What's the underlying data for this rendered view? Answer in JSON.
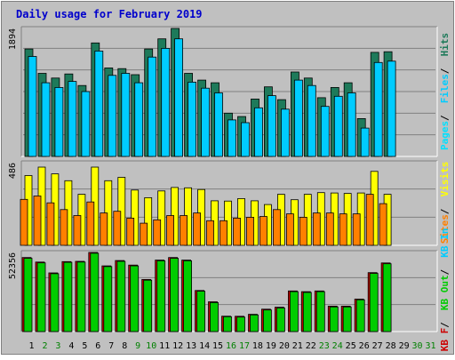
{
  "title": "Daily usage for February 2019",
  "colors": {
    "background": "#c0c0c0",
    "frame_dark": "#808080",
    "grid": "#808080",
    "title": "#0000cc",
    "hits": "#1e7a5a",
    "files": "#00ccff",
    "pages": "#00e0ff",
    "visits": "#ffff00",
    "sites": "#ff8000",
    "kb_in": "#00cc00",
    "kb_out": "#cc0000",
    "weekday_label": "#000000",
    "weekend_label": "#008000"
  },
  "chart_data": [
    {
      "type": "bar",
      "panel": "hits-files-pages",
      "title": "Daily usage for February 2019",
      "ylabel_max": "1894",
      "ylim": [
        0,
        1894
      ],
      "legend": [
        "Pages",
        "Files",
        "Hits"
      ],
      "categories": [
        "1",
        "2",
        "3",
        "4",
        "5",
        "6",
        "7",
        "8",
        "9",
        "10",
        "11",
        "12",
        "13",
        "14",
        "15",
        "16",
        "17",
        "18",
        "19",
        "20",
        "21",
        "22",
        "23",
        "24",
        "25",
        "26",
        "27",
        "28",
        "29",
        "30",
        "31"
      ],
      "series": [
        {
          "name": "Hits",
          "values": [
            1590,
            1230,
            1160,
            1220,
            1050,
            1680,
            1310,
            1300,
            1210,
            1590,
            1740,
            1894,
            1230,
            1130,
            1090,
            640,
            590,
            850,
            1030,
            840,
            1250,
            1160,
            870,
            1020,
            1090,
            560,
            1540,
            1550,
            null,
            null,
            null
          ]
        },
        {
          "name": "Files",
          "values": [
            1480,
            1090,
            1020,
            1110,
            960,
            1560,
            1200,
            1230,
            1090,
            1470,
            1600,
            1740,
            1100,
            1010,
            940,
            540,
            500,
            720,
            900,
            700,
            1130,
            1050,
            740,
            890,
            940,
            420,
            1390,
            1410,
            null,
            null,
            null
          ]
        }
      ]
    },
    {
      "type": "bar",
      "panel": "visits-sites",
      "ylabel_max": "486",
      "ylim": [
        0,
        486
      ],
      "legend": [
        "Sites",
        "Visits"
      ],
      "categories": [
        "1",
        "2",
        "3",
        "4",
        "5",
        "6",
        "7",
        "8",
        "9",
        "10",
        "11",
        "12",
        "13",
        "14",
        "15",
        "16",
        "17",
        "18",
        "19",
        "20",
        "21",
        "22",
        "23",
        "24",
        "25",
        "26",
        "27",
        "28",
        "29",
        "30",
        "31"
      ],
      "series": [
        {
          "name": "Visits",
          "values": [
            410,
            460,
            420,
            380,
            300,
            460,
            380,
            400,
            325,
            280,
            320,
            340,
            338,
            328,
            262,
            260,
            275,
            262,
            240,
            300,
            268,
            300,
            310,
            308,
            305,
            308,
            435,
            300,
            null,
            null,
            null
          ]
        },
        {
          "name": "Sites",
          "values": [
            270,
            290,
            250,
            210,
            175,
            255,
            190,
            200,
            160,
            130,
            150,
            175,
            175,
            190,
            145,
            145,
            160,
            165,
            170,
            210,
            185,
            165,
            190,
            190,
            185,
            185,
            300,
            245,
            null,
            null,
            null
          ]
        }
      ]
    },
    {
      "type": "bar",
      "panel": "kbytes",
      "ylabel_max": "52356",
      "ylim": [
        0,
        52356
      ],
      "legend": [
        "KB F",
        "KB Out",
        "KB In"
      ],
      "categories": [
        "1",
        "2",
        "3",
        "4",
        "5",
        "6",
        "7",
        "8",
        "9",
        "10",
        "11",
        "12",
        "13",
        "14",
        "15",
        "16",
        "17",
        "18",
        "19",
        "20",
        "21",
        "22",
        "23",
        "24",
        "25",
        "26",
        "27",
        "28",
        "29",
        "30",
        "31"
      ],
      "series": [
        {
          "name": "KB Out",
          "values": [
            49000,
            46000,
            38800,
            46300,
            46500,
            52356,
            43500,
            47000,
            44000,
            34500,
            47300,
            49000,
            47300,
            27200,
            19700,
            10200,
            10100,
            11400,
            14800,
            16100,
            26900,
            26400,
            26900,
            16800,
            16800,
            21500,
            39000,
            45400,
            null,
            null,
            null
          ]
        },
        {
          "name": "KB In",
          "values": [
            48500,
            45500,
            38300,
            45800,
            46000,
            51800,
            43000,
            46500,
            43500,
            34000,
            46800,
            48500,
            46800,
            26700,
            19200,
            9800,
            9600,
            11000,
            14300,
            15600,
            26400,
            25900,
            26400,
            16300,
            16300,
            21000,
            38500,
            44900,
            null,
            null,
            null
          ]
        }
      ]
    }
  ],
  "days": [
    {
      "label": "1",
      "weekend": false
    },
    {
      "label": "2",
      "weekend": true
    },
    {
      "label": "3",
      "weekend": true
    },
    {
      "label": "4",
      "weekend": false
    },
    {
      "label": "5",
      "weekend": false
    },
    {
      "label": "6",
      "weekend": false
    },
    {
      "label": "7",
      "weekend": false
    },
    {
      "label": "8",
      "weekend": false
    },
    {
      "label": "9",
      "weekend": true
    },
    {
      "label": "10",
      "weekend": true
    },
    {
      "label": "11",
      "weekend": false
    },
    {
      "label": "12",
      "weekend": false
    },
    {
      "label": "13",
      "weekend": false
    },
    {
      "label": "14",
      "weekend": false
    },
    {
      "label": "15",
      "weekend": false
    },
    {
      "label": "16",
      "weekend": true
    },
    {
      "label": "17",
      "weekend": true
    },
    {
      "label": "18",
      "weekend": false
    },
    {
      "label": "19",
      "weekend": false
    },
    {
      "label": "20",
      "weekend": false
    },
    {
      "label": "21",
      "weekend": false
    },
    {
      "label": "22",
      "weekend": false
    },
    {
      "label": "23",
      "weekend": true
    },
    {
      "label": "24",
      "weekend": true
    },
    {
      "label": "25",
      "weekend": false
    },
    {
      "label": "26",
      "weekend": false
    },
    {
      "label": "27",
      "weekend": false
    },
    {
      "label": "28",
      "weekend": false
    },
    {
      "label": "29",
      "weekend": false
    },
    {
      "label": "30",
      "weekend": true
    },
    {
      "label": "31",
      "weekend": true
    }
  ]
}
